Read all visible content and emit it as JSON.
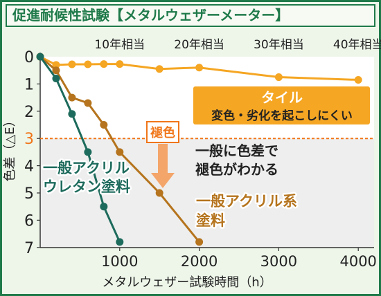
{
  "title": "促進耐候性試験【メタルウェザーメーター】",
  "chart_data": {
    "type": "line",
    "xlabel": "メタルウェザー試験時間（h）",
    "ylabel": "色差（△E）",
    "xlim": [
      0,
      4200
    ],
    "ylim": [
      0,
      7
    ],
    "y_inverted": true,
    "x_ticks": [
      1000,
      2000,
      3000,
      4000
    ],
    "y_ticks": [
      0,
      1,
      2,
      3,
      4,
      5,
      6,
      7
    ],
    "equivalent_years_axis": {
      "labels": [
        "10年相当",
        "20年相当",
        "30年相当",
        "40年相当"
      ],
      "x": [
        1000,
        2000,
        3000,
        4000
      ]
    },
    "threshold": {
      "y": 3,
      "label": "3"
    },
    "series": [
      {
        "name": "タイル",
        "color": "#f5a623",
        "points": [
          [
            0,
            0
          ],
          [
            200,
            0.3
          ],
          [
            400,
            0.28
          ],
          [
            600,
            0.28
          ],
          [
            800,
            0.27
          ],
          [
            1000,
            0.27
          ],
          [
            1500,
            0.45
          ],
          [
            2000,
            0.4
          ],
          [
            3000,
            0.75
          ],
          [
            4000,
            0.85
          ]
        ]
      },
      {
        "name": "一般アクリル系塗料",
        "color": "#b5741d",
        "points": [
          [
            0,
            0
          ],
          [
            200,
            0.5
          ],
          [
            400,
            1.5
          ],
          [
            600,
            1.7
          ],
          [
            800,
            2.5
          ],
          [
            1000,
            3.5
          ],
          [
            1500,
            5.0
          ],
          [
            2000,
            6.8
          ]
        ]
      },
      {
        "name": "一般アクリルウレタン塗料",
        "color": "#1d6b5c",
        "points": [
          [
            0,
            0
          ],
          [
            200,
            0.8
          ],
          [
            400,
            2.1
          ],
          [
            600,
            3.5
          ],
          [
            800,
            5.5
          ],
          [
            1000,
            6.8
          ]
        ]
      }
    ],
    "annotations": {
      "tile_name": "タイル",
      "tile_note": "変色・劣化を起こしにくい",
      "fade_badge": "褪色",
      "fade_note_line1": "一般に色差で",
      "fade_note_line2": "褪色がわかる",
      "urethane_line1": "一般アクリル",
      "urethane_line2": "ウレタン塗料",
      "acrylic_line1": "一般アクリル系",
      "acrylic_line2": "塗料"
    },
    "grid": false
  },
  "colors": {
    "frame": "#1f7a4a",
    "threshold": "#f0761a",
    "tile_box": "#f5a623",
    "shaded_region": "#eeeeee"
  }
}
